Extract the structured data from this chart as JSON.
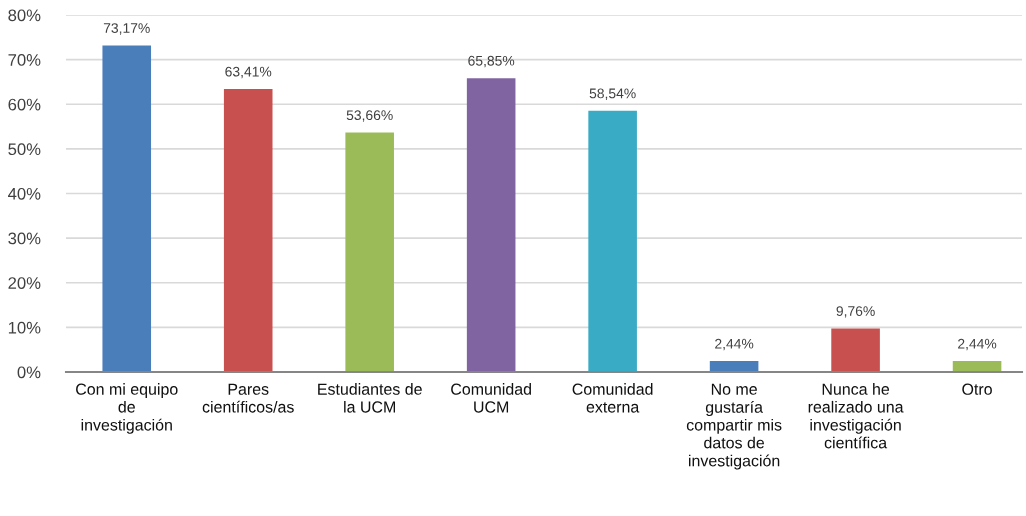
{
  "chart_data": {
    "type": "bar",
    "categories": [
      "Con mi equipo\nde\ninvestigación",
      "Pares\ncientíficos/as",
      "Estudiantes de\nla UCM",
      "Comunidad\nUCM",
      "Comunidad\nexterna",
      "No me\ngustaría\ncompartir mis\ndatos de\ninvestigación",
      "Nunca he\nrealizado una\ninvestigación\ncientífica",
      "Otro"
    ],
    "values": [
      73.17,
      63.41,
      53.66,
      65.85,
      58.54,
      2.44,
      9.76,
      2.44
    ],
    "colors": [
      "#4a7ebb",
      "#c8504f",
      "#9bbb59",
      "#8064a2",
      "#3aabc5",
      "#4a7ebb",
      "#c8504f",
      "#9bbb59"
    ],
    "value_labels": [
      "73,17%",
      "63,41%",
      "53,66%",
      "65,85%",
      "58,54%",
      "2,44%",
      "9,76%",
      "2,44%"
    ],
    "ylim": [
      0,
      80
    ],
    "yticks": [
      {
        "value": 0,
        "label": "0%"
      },
      {
        "value": 10,
        "label": "10%"
      },
      {
        "value": 20,
        "label": "20%"
      },
      {
        "value": 30,
        "label": "30%"
      },
      {
        "value": 40,
        "label": "40%"
      },
      {
        "value": 50,
        "label": "50%"
      },
      {
        "value": 60,
        "label": "60%"
      },
      {
        "value": 70,
        "label": "70%"
      },
      {
        "value": 80,
        "label": "80%"
      }
    ],
    "grid": "y"
  }
}
